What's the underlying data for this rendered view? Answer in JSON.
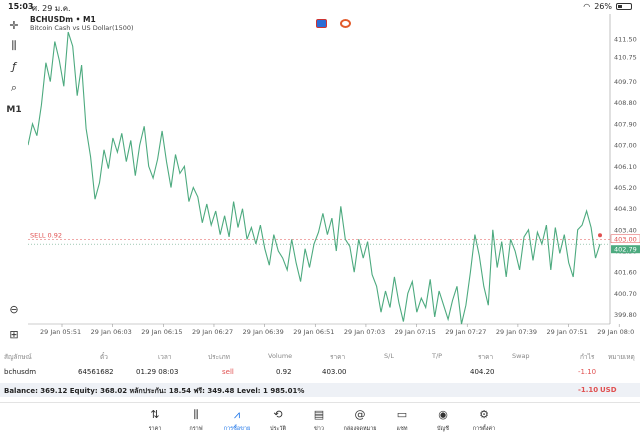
{
  "status": {
    "time": "15:03",
    "date": "ศ. 29 ม.ค.",
    "battery": "26%",
    "battery_level": 0.26
  },
  "symbol": {
    "title": "BCHUSDm • M1",
    "description": "Bitcoin Cash vs US Dollar(1500)"
  },
  "toolbar": [
    {
      "name": "crosshair-icon",
      "glyph": "✛"
    },
    {
      "name": "candlestick-icon",
      "glyph": "⫼"
    },
    {
      "name": "function-icon",
      "glyph": "ƒ"
    },
    {
      "name": "objects-icon",
      "glyph": "⌕"
    },
    {
      "name": "timeframe-button",
      "glyph": "M1"
    }
  ],
  "chart_data": {
    "type": "line",
    "x_labels": [
      "29 Jan 05:51",
      "29 Jan 06:03",
      "29 Jan 06:15",
      "29 Jan 06:27",
      "29 Jan 06:39",
      "29 Jan 06:51",
      "29 Jan 07:03",
      "29 Jan 07:15",
      "29 Jan 07:27",
      "29 Jan 07:39",
      "29 Jan 07:51",
      "29 Jan 08:0"
    ],
    "y_ticks": [
      "411.50",
      "410.75",
      "409.70",
      "408.80",
      "407.90",
      "407.00",
      "406.10",
      "405.20",
      "404.30",
      "403.40",
      "402.50",
      "401.60",
      "400.70",
      "399.80"
    ],
    "y_tick_values": [
      411.5,
      410.75,
      409.7,
      408.8,
      407.9,
      407.0,
      406.1,
      405.2,
      404.3,
      403.4,
      402.5,
      401.6,
      400.7,
      399.8
    ],
    "ylim": [
      399.4,
      412.4
    ],
    "sell_label": "SELL 0.92",
    "sell_price": 403.0,
    "current_price": 402.79,
    "price_badges": [
      "403.00",
      "402.79"
    ],
    "values": [
      407.0,
      407.9,
      407.4,
      408.7,
      410.5,
      409.7,
      411.4,
      410.6,
      409.5,
      411.8,
      411.2,
      409.1,
      410.4,
      407.7,
      406.5,
      404.7,
      405.4,
      406.8,
      406.0,
      407.3,
      406.7,
      407.5,
      406.3,
      407.2,
      405.7,
      407.0,
      407.8,
      406.1,
      405.6,
      406.4,
      407.6,
      406.3,
      405.2,
      406.6,
      405.8,
      406.1,
      404.6,
      405.2,
      404.8,
      403.7,
      404.5,
      403.6,
      404.2,
      403.2,
      404.0,
      403.1,
      404.6,
      403.5,
      404.3,
      403.0,
      403.5,
      402.8,
      403.6,
      402.6,
      401.9,
      403.2,
      402.5,
      402.2,
      401.7,
      403.0,
      402.0,
      401.2,
      402.6,
      401.8,
      402.8,
      403.3,
      404.1,
      403.2,
      403.9,
      402.5,
      404.4,
      403.0,
      402.7,
      401.6,
      403.0,
      402.2,
      402.9,
      401.5,
      401.0,
      399.9,
      400.8,
      400.1,
      401.4,
      400.3,
      399.5,
      400.7,
      401.2,
      399.9,
      400.5,
      400.1,
      401.3,
      399.7,
      400.8,
      400.2,
      399.6,
      400.4,
      401.0,
      399.4,
      400.2,
      401.6,
      403.2,
      402.3,
      401.0,
      400.2,
      403.4,
      401.8,
      402.9,
      401.4,
      403.0,
      402.5,
      401.7,
      403.1,
      403.4,
      402.1,
      403.3,
      402.8,
      403.6,
      401.7,
      403.5,
      402.4,
      403.2,
      402.0,
      401.4,
      403.4,
      403.6,
      404.2,
      403.5,
      402.2,
      402.8
    ]
  },
  "table": {
    "headers": [
      "สัญลักษณ์",
      "ตั๋ว",
      "เวลา",
      "ประเภท",
      "Volume",
      "ราคา",
      "S/L",
      "T/P",
      "ราคา",
      "Swap",
      "กำไร",
      "หมายเหตุ"
    ],
    "row": {
      "symbol": "bchusdm",
      "ticket": "64561682",
      "time": "01.29 08:03",
      "type": "sell",
      "volume": "0.92",
      "price": "403.00",
      "current": "404.20",
      "profit": "-1.10"
    }
  },
  "balance": {
    "text": "Balance: 369.12 Equity: 368.02 หลักประกัน: 18.54 ฟรี: 349.48 Level: 1 985.01%",
    "profit": "-1.10",
    "currency": "USD"
  },
  "nav": [
    {
      "name": "nav-quotes",
      "label": "ราคา",
      "glyph": "⇅"
    },
    {
      "name": "nav-chart",
      "label": "กราฟ",
      "glyph": "⫼"
    },
    {
      "name": "nav-trade",
      "label": "การซื้อขาย",
      "glyph": "📈"
    },
    {
      "name": "nav-history",
      "label": "ประวัติ",
      "glyph": "⟲"
    },
    {
      "name": "nav-news",
      "label": "ข่าว",
      "glyph": "▤"
    },
    {
      "name": "nav-mailbox",
      "label": "กล่องจดหมาย",
      "glyph": "@"
    },
    {
      "name": "nav-chat",
      "label": "แชท",
      "glyph": "▭"
    },
    {
      "name": "nav-accounts",
      "label": "บัญชี",
      "glyph": "◉"
    },
    {
      "name": "nav-settings",
      "label": "การตั้งค่า",
      "glyph": "⚙"
    }
  ],
  "colors": {
    "line": "#4daa7f",
    "sell": "#e05050",
    "active": "#1a73e8",
    "grid": "#d0d0d0"
  }
}
